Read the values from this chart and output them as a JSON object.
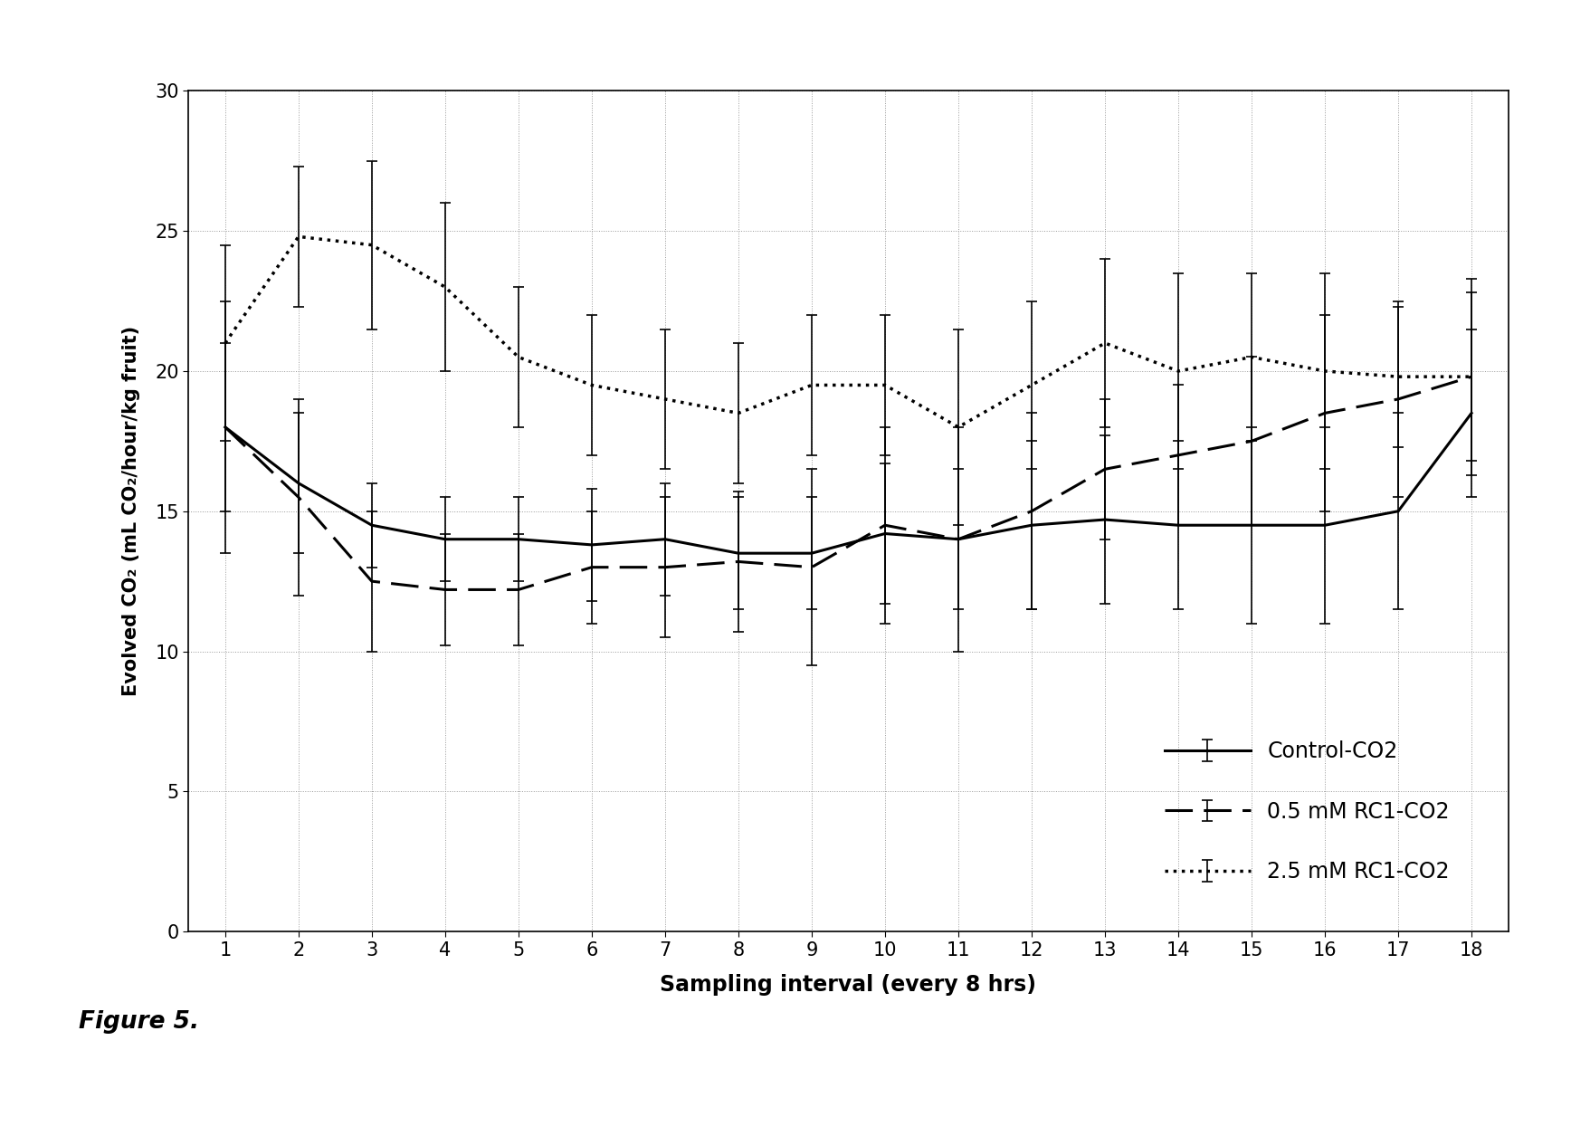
{
  "x": [
    1,
    2,
    3,
    4,
    5,
    6,
    7,
    8,
    9,
    10,
    11,
    12,
    13,
    14,
    15,
    16,
    17,
    18
  ],
  "control_y": [
    18.0,
    16.0,
    14.5,
    14.0,
    14.0,
    13.8,
    14.0,
    13.5,
    13.5,
    14.2,
    14.0,
    14.5,
    14.7,
    14.5,
    14.5,
    14.5,
    15.0,
    18.5
  ],
  "control_err": [
    3.0,
    2.5,
    1.5,
    1.5,
    1.5,
    2.0,
    2.0,
    2.0,
    2.0,
    2.5,
    2.5,
    3.0,
    3.0,
    3.0,
    3.5,
    3.5,
    3.5,
    3.0
  ],
  "rc1_05_y": [
    18.0,
    15.5,
    12.5,
    12.2,
    12.2,
    13.0,
    13.0,
    13.2,
    13.0,
    14.5,
    14.0,
    15.0,
    16.5,
    17.0,
    17.5,
    18.5,
    19.0,
    19.8
  ],
  "rc1_05_err": [
    4.5,
    3.5,
    2.5,
    2.0,
    2.0,
    2.0,
    2.5,
    2.5,
    3.5,
    3.5,
    4.0,
    3.5,
    2.5,
    2.5,
    3.0,
    3.5,
    3.5,
    3.5
  ],
  "rc1_25_y": [
    21.0,
    24.8,
    24.5,
    23.0,
    20.5,
    19.5,
    19.0,
    18.5,
    19.5,
    19.5,
    18.0,
    19.5,
    21.0,
    20.0,
    20.5,
    20.0,
    19.8,
    19.8
  ],
  "rc1_25_err": [
    3.5,
    2.5,
    3.0,
    3.0,
    2.5,
    2.5,
    2.5,
    2.5,
    2.5,
    2.5,
    3.5,
    3.0,
    3.0,
    3.5,
    3.0,
    3.5,
    2.5,
    3.0
  ],
  "xlabel": "Sampling interval (every 8 hrs)",
  "ylabel": "Evolved CO₂ (mL CO₂/hour/kg fruit)",
  "ylim": [
    0,
    30
  ],
  "xlim": [
    0.5,
    18.5
  ],
  "yticks": [
    0,
    5,
    10,
    15,
    20,
    25,
    30
  ],
  "xticks": [
    1,
    2,
    3,
    4,
    5,
    6,
    7,
    8,
    9,
    10,
    11,
    12,
    13,
    14,
    15,
    16,
    17,
    18
  ],
  "legend_labels": [
    "Control-CO2",
    "0.5 mM RC1-CO2",
    "2.5 mM RC1-CO2"
  ],
  "line_color": "#000000",
  "background_color": "#ffffff",
  "figure_caption": "Figure 5."
}
